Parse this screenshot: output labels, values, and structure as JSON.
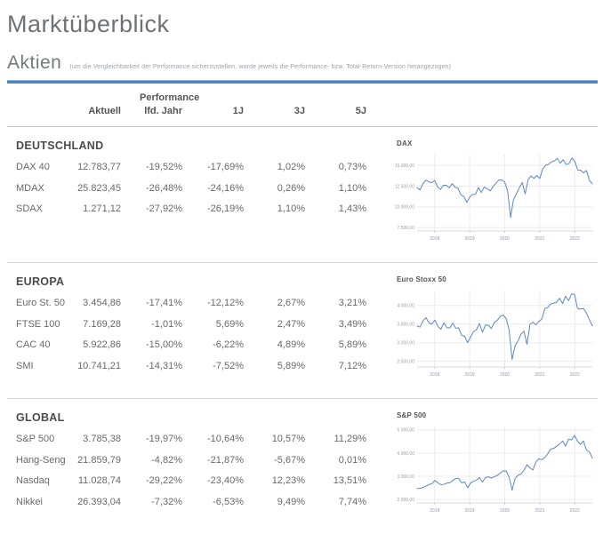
{
  "page": {
    "title": "Marktüberblick",
    "section_title": "Aktien",
    "section_note": "(um die Vergleichbarkeit der Performance sicherzustellen, wurde jeweils die Performance- bzw. Total-Return-Version herangezogen)"
  },
  "colors": {
    "accent_rule": "#4a86c6",
    "chart_line": "#5b87c7",
    "grid_line": "#ececec",
    "axis_line": "#d9d9d9",
    "divider": "#d4d4d4"
  },
  "table": {
    "header_group": "Performance",
    "columns": [
      "Aktuell",
      "lfd. Jahr",
      "1J",
      "3J",
      "5J"
    ],
    "groups": [
      {
        "name": "DEUTSCHLAND",
        "rows": [
          {
            "label": "DAX 40",
            "values": [
              "12.783,77",
              "-19,52%",
              "-17,69%",
              "1,02%",
              "0,73%"
            ]
          },
          {
            "label": "MDAX",
            "values": [
              "25.823,45",
              "-26,48%",
              "-24,16%",
              "0,26%",
              "1,10%"
            ]
          },
          {
            "label": "SDAX",
            "values": [
              "1.271,12",
              "-27,92%",
              "-26,19%",
              "1,10%",
              "1,43%"
            ]
          }
        ]
      },
      {
        "name": "EUROPA",
        "rows": [
          {
            "label": "Euro St. 50",
            "values": [
              "3.454,86",
              "-17,41%",
              "-12,12%",
              "2,67%",
              "3,21%"
            ]
          },
          {
            "label": "FTSE 100",
            "values": [
              "7.169,28",
              "-1,01%",
              "5,69%",
              "2,47%",
              "3,49%"
            ]
          },
          {
            "label": "CAC 40",
            "values": [
              "5.922,86",
              "-15,00%",
              "-6,22%",
              "4,89%",
              "5,89%"
            ]
          },
          {
            "label": "SMI",
            "values": [
              "10.741,21",
              "-14,31%",
              "-7,52%",
              "5,89%",
              "7,12%"
            ]
          }
        ]
      },
      {
        "name": "GLOBAL",
        "rows": [
          {
            "label": "S&P 500",
            "values": [
              "3.785,38",
              "-19,97%",
              "-10,64%",
              "10,57%",
              "11,29%"
            ]
          },
          {
            "label": "Hang-Seng",
            "values": [
              "21.859,79",
              "-4,82%",
              "-21,87%",
              "-5,67%",
              "0,01%"
            ]
          },
          {
            "label": "Nasdaq",
            "values": [
              "11.028,74",
              "-29,22%",
              "-23,40%",
              "12,23%",
              "13,51%"
            ]
          },
          {
            "label": "Nikkei",
            "values": [
              "26.393,04",
              "-7,32%",
              "-6,53%",
              "9,49%",
              "7,74%"
            ]
          }
        ]
      }
    ]
  },
  "chart_data": [
    {
      "type": "line",
      "title": "DAX",
      "x_ticks": [
        "2018",
        "2019",
        "2020",
        "2021",
        "2022"
      ],
      "x_range": "Mitte 2017 bis Mitte 2022, monatlich",
      "ylim": [
        7100,
        16300
      ],
      "ygrid_values": [
        7500,
        10000,
        12500,
        15000
      ],
      "ygrid_labels": [
        "7.500,00",
        "10.000,00",
        "12.500,00",
        "15.000,00"
      ],
      "legend": "none",
      "grid": true,
      "series": [
        {
          "name": "DAX",
          "values": [
            12325,
            12055,
            12828,
            13230,
            13024,
            12918,
            13190,
            12436,
            12097,
            12612,
            12604,
            12306,
            12806,
            12364,
            12247,
            11447,
            11257,
            10559,
            11173,
            11515,
            11526,
            12344,
            11727,
            12399,
            12190,
            11939,
            12428,
            12867,
            13236,
            13249,
            12982,
            11890,
            8742,
            10862,
            11587,
            12311,
            12945,
            11556,
            13291,
            13719,
            13433,
            13786,
            13433,
            14569,
            15008,
            15136,
            15421,
            15544,
            15835,
            15261,
            15689,
            15100,
            15205,
            15885,
            15471,
            14461,
            14415,
            14098,
            14388,
            13212,
            12784
          ]
        }
      ]
    },
    {
      "type": "line",
      "title": "Euro Stoxx 50",
      "x_ticks": [
        "2018",
        "2019",
        "2020",
        "2021",
        "2022"
      ],
      "x_range": "Mitte 2017 bis Mitte 2022, monatlich",
      "ylim": [
        2350,
        4400
      ],
      "ygrid_values": [
        2500,
        3000,
        3500,
        4000
      ],
      "ygrid_labels": [
        "2.500,00",
        "3.000,00",
        "3.500,00",
        "4.000,00"
      ],
      "legend": "none",
      "grid": true,
      "series": [
        {
          "name": "Euro Stoxx 50",
          "values": [
            3450,
            3421,
            3595,
            3674,
            3528,
            3504,
            3609,
            3439,
            3362,
            3537,
            3407,
            3396,
            3525,
            3393,
            3399,
            3198,
            3173,
            3001,
            3159,
            3298,
            3352,
            3515,
            3280,
            3474,
            3467,
            3379,
            3542,
            3604,
            3703,
            3745,
            3641,
            3329,
            2548,
            2928,
            3050,
            3232,
            3310,
            2958,
            3493,
            3553,
            3481,
            3572,
            3636,
            3919,
            3945,
            4039,
            4064,
            4089,
            4196,
            4048,
            4250,
            4128,
            4306,
            4298,
            3924,
            3902,
            3919,
            3802,
            3618,
            3455
          ]
        }
      ]
    },
    {
      "type": "line",
      "title": "S&P 500",
      "x_ticks": [
        "2018",
        "2019",
        "2020",
        "2021",
        "2022"
      ],
      "x_range": "Mitte 2017 bis Mitte 2022, monatlich",
      "ylim": [
        1850,
        5150
      ],
      "ygrid_values": [
        2000,
        3000,
        4000,
        5000
      ],
      "ygrid_labels": [
        "2.000,00",
        "3.000,00",
        "4.000,00",
        "5.000,00"
      ],
      "legend": "none",
      "grid": true,
      "series": [
        {
          "name": "S&P 500",
          "values": [
            2470,
            2472,
            2519,
            2575,
            2648,
            2674,
            2824,
            2714,
            2641,
            2648,
            2705,
            2718,
            2816,
            2902,
            2914,
            2712,
            2760,
            2507,
            2704,
            2784,
            2834,
            2946,
            2752,
            2942,
            2980,
            2926,
            2977,
            3038,
            3141,
            3231,
            3226,
            2954,
            2400,
            2912,
            3044,
            3100,
            3271,
            3500,
            3363,
            3270,
            3622,
            3756,
            3714,
            3811,
            3973,
            4181,
            4204,
            4298,
            4395,
            4523,
            4307,
            4605,
            4567,
            4766,
            4516,
            4374,
            4530,
            4132,
            4057,
            3785
          ]
        }
      ]
    }
  ]
}
